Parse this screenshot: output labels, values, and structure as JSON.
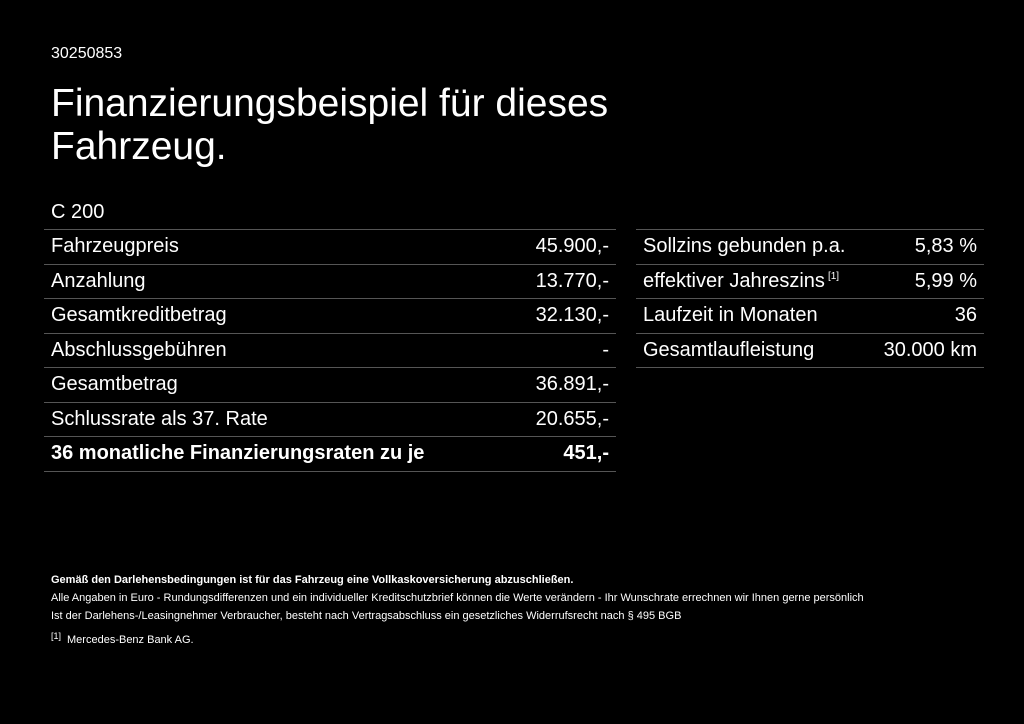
{
  "code": "30250853",
  "title": "Finanzierungsbeispiel für dieses Fahrzeug.",
  "model": "C 200",
  "left_table": [
    {
      "label": "Fahrzeugpreis",
      "value": "45.900,-"
    },
    {
      "label": "Anzahlung",
      "value": "13.770,-"
    },
    {
      "label": "Gesamtkreditbetrag",
      "value": "32.130,-"
    },
    {
      "label": "Abschlussgebühren",
      "value": "-"
    },
    {
      "label": "Gesamtbetrag",
      "value": "36.891,-"
    },
    {
      "label": "Schlussrate als 37. Rate",
      "value": "20.655,-"
    },
    {
      "label": "36 monatliche Finanzierungsraten zu je",
      "value": "451,-"
    }
  ],
  "right_table": [
    {
      "label": "Sollzins gebunden p.a.",
      "value": "5,83 %"
    },
    {
      "label": "effektiver Jahreszins",
      "sup": "[1]",
      "value": "5,99 %"
    },
    {
      "label": "Laufzeit in Monaten",
      "value": "36"
    },
    {
      "label": "Gesamtlaufleistung",
      "value": "30.000 km"
    }
  ],
  "notes": {
    "bold": "Gemäß den Darlehensbedingungen ist für das Fahrzeug eine Vollkaskoversicherung abzuschließen.",
    "line1": "Alle Angaben in Euro - Rundungsdifferenzen und ein individueller Kreditschutzbrief können die Werte verändern - Ihr Wunschrate errechnen wir Ihnen gerne persönlich",
    "line2": "Ist der Darlehens-/Leasingnehmer Verbraucher, besteht nach Vertragsabschluss ein gesetzliches Widerrufsrecht nach § 495 BGB",
    "footnote_mark": "[1]",
    "footnote": "Mercedes-Benz Bank AG."
  }
}
